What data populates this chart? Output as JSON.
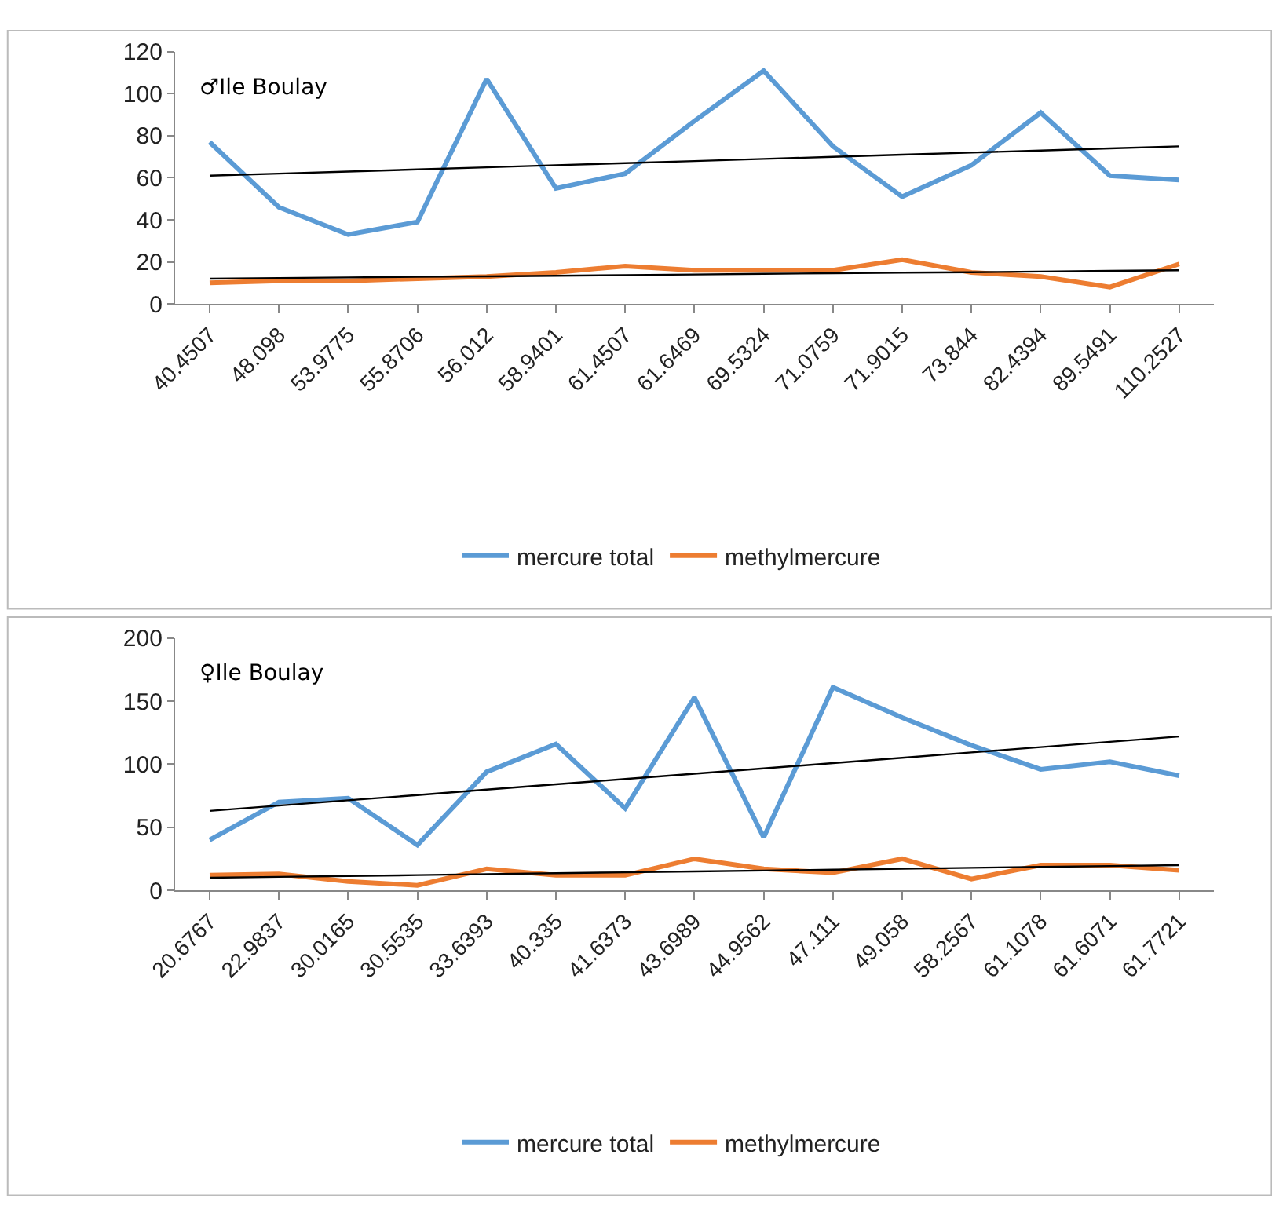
{
  "chart_data": [
    {
      "type": "line",
      "title": "♂Ile Boulay",
      "categories": [
        "40.4507",
        "48.098",
        "53.9775",
        "55.8706",
        "56.012",
        "58.9401",
        "61.4507",
        "61.6469",
        "69.5324",
        "71.0759",
        "71.9015",
        "73.844",
        "82.4394",
        "89.5491",
        "110.2527"
      ],
      "series": [
        {
          "name": "mercure total",
          "color": "#5b9bd5",
          "values": [
            77,
            46,
            33,
            39,
            107,
            55,
            62,
            87,
            111,
            75,
            51,
            66,
            91,
            61,
            59
          ]
        },
        {
          "name": "methylmercure",
          "color": "#ed7d31",
          "values": [
            10,
            11,
            11,
            12,
            13,
            15,
            18,
            16,
            16,
            16,
            21,
            15,
            13,
            8,
            19
          ]
        },
        {
          "color": "#000000",
          "values": [
            61,
            62,
            63,
            64,
            65,
            66,
            67,
            68,
            69,
            70,
            71,
            72,
            73,
            74,
            75
          ]
        },
        {
          "color": "#000000",
          "values": [
            12,
            12.3,
            12.6,
            12.9,
            13.1,
            13.4,
            13.7,
            14,
            14.3,
            14.6,
            14.9,
            15.1,
            15.4,
            15.7,
            16
          ]
        }
      ],
      "ylim": [
        0,
        120
      ],
      "yticks": [
        0,
        20,
        40,
        60,
        80,
        100,
        120
      ],
      "grid": false,
      "legend": "bottom",
      "marker": "none"
    },
    {
      "type": "line",
      "title": "♀Ile Boulay",
      "categories": [
        "20.6767",
        "22.9837",
        "30.0165",
        "30.5535",
        "33.6393",
        "40.335",
        "41.6373",
        "43.6989",
        "44.9562",
        "47.111",
        "49.058",
        "58.2567",
        "61.1078",
        "61.6071",
        "61.7721"
      ],
      "series": [
        {
          "name": "mercure total",
          "color": "#5b9bd5",
          "values": [
            40,
            70,
            73,
            36,
            94,
            116,
            65,
            153,
            42,
            161,
            137,
            115,
            96,
            102,
            91
          ]
        },
        {
          "name": "methylmercure",
          "color": "#ed7d31",
          "values": [
            12,
            13,
            7,
            4,
            17,
            12,
            12,
            25,
            17,
            14,
            25,
            9,
            20,
            20,
            16
          ]
        },
        {
          "color": "#000000",
          "values": [
            63,
            67.2,
            71.4,
            75.6,
            79.9,
            84.1,
            88.3,
            92.5,
            96.7,
            100.9,
            105.1,
            109.4,
            113.6,
            117.8,
            122
          ]
        },
        {
          "color": "#000000",
          "values": [
            10,
            10.7,
            11.4,
            12.1,
            12.9,
            13.6,
            14.3,
            15,
            15.7,
            16.4,
            17.1,
            17.9,
            18.6,
            19.3,
            20
          ]
        }
      ],
      "ylim": [
        0,
        200
      ],
      "yticks": [
        0,
        50,
        100,
        150,
        200
      ],
      "grid": false,
      "legend": "bottom",
      "marker": "none"
    }
  ]
}
